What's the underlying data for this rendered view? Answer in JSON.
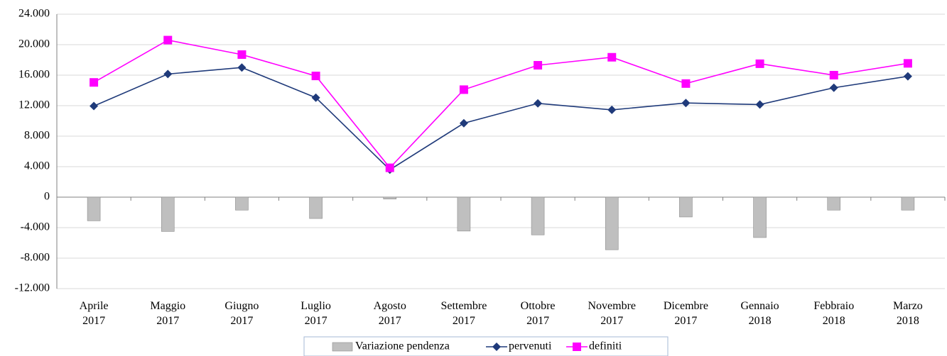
{
  "chart_data": {
    "type": "combo",
    "categories": [
      "Aprile 2017",
      "Maggio 2017",
      "Giugno 2017",
      "Luglio 2017",
      "Agosto 2017",
      "Settembre 2017",
      "Ottobre 2017",
      "Novembre 2017",
      "Dicembre 2017",
      "Gennaio 2018",
      "Febbraio 2018",
      "Marzo 2018"
    ],
    "series": [
      {
        "name": "Variazione pendenza",
        "type": "bar",
        "color": "#bfbfbf",
        "values": [
          -3100,
          -4500,
          -1700,
          -2800,
          -250,
          -4450,
          -4950,
          -6900,
          -2600,
          -5300,
          -1700,
          -1700
        ]
      },
      {
        "name": "pervenuti",
        "type": "line",
        "marker": "diamond",
        "color": "#1f3a7a",
        "values": [
          11950,
          16150,
          17000,
          13050,
          3600,
          9700,
          12300,
          11450,
          12350,
          12150,
          14350,
          15850
        ]
      },
      {
        "name": "definiti",
        "type": "line",
        "marker": "square",
        "color": "#ff00ff",
        "values": [
          15050,
          20600,
          18700,
          15900,
          3850,
          14100,
          17300,
          18350,
          14900,
          17500,
          16000,
          17550
        ]
      }
    ],
    "ylim": [
      -12000,
      24000
    ],
    "yticks": [
      {
        "value": -12000,
        "label": "-12.000"
      },
      {
        "value": -8000,
        "label": "-8.000"
      },
      {
        "value": -4000,
        "label": "-4.000"
      },
      0,
      {
        "value": 4000,
        "label": "4.000"
      },
      {
        "value": 8000,
        "label": "8.000"
      },
      {
        "value": 12000,
        "label": "12.000"
      },
      {
        "value": 16000,
        "label": "16.000"
      },
      {
        "value": 20000,
        "label": "20.000"
      },
      {
        "value": 24000,
        "label": "24.000"
      }
    ],
    "grid": true,
    "legend": "bottom"
  }
}
